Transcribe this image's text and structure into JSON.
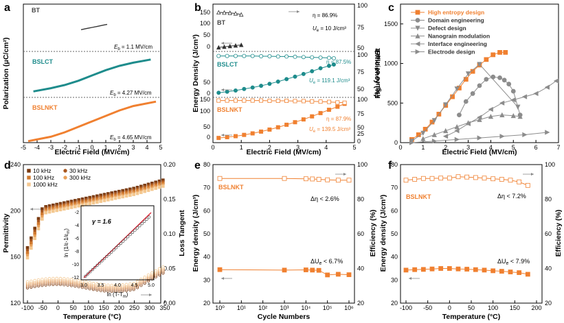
{
  "colors": {
    "orange": "#f08030",
    "teal": "#1e8c8c",
    "gray": "#8c8c8c",
    "dark": "#000000"
  },
  "chart_data": [
    {
      "panel": "a",
      "type": "line",
      "xlabel": "Electric Field (MV/cm)",
      "ylabel": "Polarization (μC/cm²)",
      "xlim": [
        -5,
        5
      ],
      "xticks": [
        -5,
        -4,
        -3,
        -2,
        -1,
        0,
        1,
        2,
        3,
        4,
        5
      ],
      "series": [
        {
          "name": "BT",
          "emax": "E",
          "emax_sub": "b",
          "emax_val": " = 1.1 MV/cm",
          "x": [
            -0.8,
            -0.4,
            0,
            0.4,
            0.8,
            1.1
          ],
          "y": [
            -3,
            -1.5,
            0,
            1.5,
            3,
            4
          ]
        },
        {
          "name": "BSLCT",
          "emax": "E",
          "emax_sub": "b",
          "emax_val": " = 4.27 MV/cm",
          "x": [
            -4.27,
            -3,
            -2,
            -1,
            0,
            1,
            2,
            3,
            4.27
          ],
          "y": [
            -15,
            -12,
            -9,
            -5,
            0,
            5,
            9,
            12,
            15
          ]
        },
        {
          "name": "BSLNKT",
          "emax": "E",
          "emax_sub": "b",
          "emax_val": " = 4.65 MV/cm",
          "x": [
            -4.65,
            -3,
            -2,
            -1,
            0,
            1,
            2,
            3,
            4.65
          ],
          "y": [
            -18,
            -14,
            -10,
            -5,
            0,
            5,
            10,
            14,
            18
          ]
        }
      ]
    },
    {
      "panel": "b",
      "type": "line+scatter",
      "xlabel": "Electric Field (MV/cm)",
      "ylabel": "Energy Density (J/cm³)",
      "y2label": "Efficiency (%)",
      "xlim": [
        0,
        5
      ],
      "xticks": [
        0,
        1,
        2,
        3,
        4,
        5
      ],
      "ylabels": {
        "top": [
          "150",
          "100",
          "50",
          "0"
        ],
        "mid": [
          "50",
          "0"
        ],
        "bot": [
          "150",
          "100",
          "50",
          "0"
        ]
      },
      "y2labels": {
        "top": [
          "100",
          "75",
          "50"
        ],
        "mid": [
          "100",
          "75",
          "50"
        ],
        "bot": [
          "100",
          "75",
          "50",
          "25",
          "0"
        ]
      },
      "groups": [
        {
          "name": "BT",
          "eta": "η = 86.9%",
          "ue": "U",
          "ue_sub": "e",
          "ue_val": " = 10 J/cm³",
          "x": [
            0.2,
            0.4,
            0.6,
            0.8,
            1.0
          ],
          "ud": [
            2,
            4,
            6,
            8,
            10
          ],
          "eta_vals": [
            95,
            94,
            93,
            91,
            87
          ]
        },
        {
          "name": "BSLCT",
          "eta": "η = 87.5%",
          "ue": "U",
          "ue_sub": "e",
          "ue_val": " = 119.1 J/cm³",
          "x": [
            0.2,
            0.5,
            0.8,
            1.1,
            1.4,
            1.7,
            2.0,
            2.3,
            2.6,
            2.9,
            3.2,
            3.5,
            3.8,
            4.1,
            4.27
          ],
          "ud": [
            5,
            9,
            14,
            20,
            26,
            33,
            41,
            50,
            60,
            70,
            81,
            92,
            104,
            114,
            119
          ],
          "eta_vals": [
            96,
            96,
            96,
            96,
            96,
            95,
            95,
            94,
            94,
            93,
            92,
            91,
            90,
            89,
            87.5
          ]
        },
        {
          "name": "BSLNKT",
          "eta": "η = 87.9%",
          "ue": "U",
          "ue_sub": "e",
          "ue_val": " = 139.5 J/cm³",
          "x": [
            0.2,
            0.5,
            0.8,
            1.1,
            1.4,
            1.7,
            2.0,
            2.3,
            2.6,
            2.9,
            3.2,
            3.5,
            3.8,
            4.1,
            4.4,
            4.65
          ],
          "ud": [
            5,
            8,
            12,
            17,
            23,
            30,
            38,
            47,
            57,
            67,
            78,
            90,
            103,
            116,
            128,
            139.5
          ],
          "eta_vals": [
            96,
            96,
            96,
            96,
            96,
            96,
            95,
            95,
            95,
            94,
            94,
            93,
            92,
            91,
            89,
            88
          ]
        }
      ]
    },
    {
      "panel": "c",
      "type": "line+scatter",
      "xlabel": "Electric Field (MV/cm)",
      "ylabel": "Figure of merit",
      "xlim": [
        0,
        7
      ],
      "ylim": [
        0,
        1750
      ],
      "xticks": [
        0,
        1,
        2,
        3,
        4,
        5,
        6,
        7
      ],
      "yticks": [
        0,
        500,
        1000,
        1500
      ],
      "series": [
        {
          "name": "High entropy design",
          "color": "#f08030",
          "marker": "square",
          "x": [
            0.5,
            0.8,
            1.1,
            1.4,
            1.7,
            2.0,
            2.3,
            2.6,
            2.9,
            3.2,
            3.5,
            3.8,
            4.1,
            4.4,
            4.65
          ],
          "y": [
            40,
            100,
            170,
            260,
            360,
            470,
            580,
            690,
            800,
            900,
            980,
            1050,
            1110,
            1140,
            1140
          ]
        },
        {
          "name": "Domain engineering",
          "color": "#8c8c8c",
          "marker": "circle",
          "x": [
            2.6,
            2.9,
            3.2,
            3.5,
            3.8,
            4.1,
            4.4,
            4.6,
            4.8,
            5.0,
            5.3
          ],
          "y": [
            350,
            520,
            620,
            720,
            800,
            830,
            820,
            790,
            740,
            650,
            350
          ]
        },
        {
          "name": "Defect design",
          "color": "#8c8c8c",
          "marker": "tri-down",
          "x": [
            0.5,
            1.0,
            1.5,
            2.0,
            2.5,
            3.0,
            3.5,
            5.2
          ],
          "y": [
            20,
            120,
            280,
            480,
            680,
            870,
            990,
            450
          ]
        },
        {
          "name": "Nanograin modulation",
          "color": "#8c8c8c",
          "marker": "tri-up",
          "x": [
            1.0,
            1.5,
            2.0,
            2.5,
            3.0,
            3.5,
            4.0,
            4.5,
            5.0,
            5.3
          ],
          "y": [
            50,
            100,
            150,
            200,
            250,
            290,
            330,
            350,
            340,
            330
          ]
        },
        {
          "name": "Interface engineering",
          "color": "#8c8c8c",
          "marker": "tri-left",
          "x": [
            2.0,
            2.5,
            3.0,
            3.5,
            4.0,
            4.5,
            5.0,
            5.5,
            6.0,
            6.5,
            6.9
          ],
          "y": [
            80,
            150,
            240,
            320,
            420,
            500,
            540,
            580,
            620,
            700,
            780
          ]
        },
        {
          "name": "Electrode design",
          "color": "#8c8c8c",
          "marker": "tri-right",
          "x": [
            0.5,
            1.5,
            2.5,
            3.5,
            4.5,
            5.5,
            6.5
          ],
          "y": [
            0,
            20,
            40,
            60,
            80,
            100,
            130
          ]
        }
      ]
    },
    {
      "panel": "d",
      "type": "line+scatter",
      "xlabel": "Temperature (°C)",
      "ylabel": "Permittivity",
      "y2label": "Loss Tangent",
      "xlim": [
        -100,
        350
      ],
      "ylim": [
        120,
        240
      ],
      "y2lim": [
        0,
        0.2
      ],
      "xticks": [
        -100,
        -50,
        0,
        50,
        100,
        150,
        200,
        250,
        300,
        350
      ],
      "yticks": [
        120,
        160,
        200,
        240
      ],
      "y2ticks": [
        0.0,
        0.05,
        0.1,
        0.15,
        0.2
      ],
      "legend": [
        "10 kHz",
        "30 kHz",
        "100 kHz",
        "300 kHz",
        "1000 kHz"
      ],
      "legend_colors": [
        "#7a3a10",
        "#a8561f",
        "#d07a30",
        "#e8a05a",
        "#f4c890"
      ],
      "permittivity_top": [
        210,
        212,
        214,
        216,
        218,
        220,
        222,
        224,
        226,
        228
      ],
      "inset": {
        "label": "γ = 1.6",
        "xlabel": "ln (T-T",
        "xlabel_sub": "m",
        "ylabel": "ln (1/ε",
        "xlim": [
          3.0,
          5.0
        ],
        "ylim": [
          -12,
          -2
        ],
        "xticks": [
          3.0,
          3.5,
          4.0,
          4.5,
          5.0
        ],
        "yticks": [
          -12,
          -10,
          -8,
          -6,
          -4,
          -2
        ]
      }
    },
    {
      "panel": "e",
      "type": "line+scatter",
      "title": "BSLNKT",
      "note1": "Δη < 2.6%",
      "note2": "ΔU",
      "note2_sub": "e",
      "note2_val": " < 6.7%",
      "xlabel": "Cycle Numbers",
      "ylabel": "Energy density (J/cm³)",
      "y2label": "Efficiency (%)",
      "xscale": "log",
      "xlim": [
        0,
        6
      ],
      "xticks": [
        "10⁰",
        "10¹",
        "10²",
        "10³",
        "10⁴",
        "10⁵",
        "10⁶"
      ],
      "ylim": [
        20,
        80
      ],
      "yticks": [
        20,
        30,
        40,
        50,
        60,
        70,
        80
      ],
      "y2ticks": [
        20,
        40,
        60,
        80,
        100
      ],
      "eta": {
        "logx": [
          0,
          3,
          4,
          4.3,
          4.6,
          5,
          5.5,
          6
        ],
        "y": [
          92,
          92,
          91.8,
          91.7,
          91.5,
          91.2,
          91,
          91
        ]
      },
      "ue": {
        "logx": [
          0,
          3,
          4,
          4.3,
          4.6,
          5,
          5.5,
          6
        ],
        "y": [
          34.5,
          34.3,
          34.4,
          34.3,
          34.2,
          32.2,
          32.5,
          32.3
        ]
      }
    },
    {
      "panel": "f",
      "type": "line+scatter",
      "title": "BSLNKT",
      "note1": "Δη < 7.2%",
      "note2": "ΔU",
      "note2_sub": "e",
      "note2_val": " < 7.9%",
      "xlabel": "Temperature (°C)",
      "ylabel": "Energy density (J/cm³)",
      "y2label": "Efficiency (%)",
      "xlim": [
        -100,
        200
      ],
      "xticks": [
        -100,
        -50,
        0,
        50,
        100,
        150,
        200
      ],
      "ylim": [
        20,
        80
      ],
      "yticks": [
        20,
        30,
        40,
        50,
        60,
        70,
        80
      ],
      "y2ticks": [
        20,
        40,
        60,
        80,
        100
      ],
      "eta": {
        "x": [
          -100,
          -80,
          -60,
          -40,
          -20,
          0,
          20,
          40,
          60,
          80,
          100,
          120,
          140,
          160,
          180
        ],
        "y": [
          91,
          91.5,
          92,
          92,
          92.2,
          92.2,
          93,
          92.8,
          92.5,
          92.2,
          91.8,
          91.5,
          91,
          90,
          88
        ]
      },
      "ue": {
        "x": [
          -100,
          -80,
          -60,
          -40,
          -20,
          0,
          20,
          40,
          60,
          80,
          100,
          120,
          140,
          160,
          180
        ],
        "y": [
          34.3,
          34.5,
          34.6,
          34.8,
          35,
          35,
          34.8,
          34.7,
          34.5,
          34.3,
          34.0,
          33.8,
          33.5,
          33.2,
          32.5
        ]
      }
    }
  ]
}
